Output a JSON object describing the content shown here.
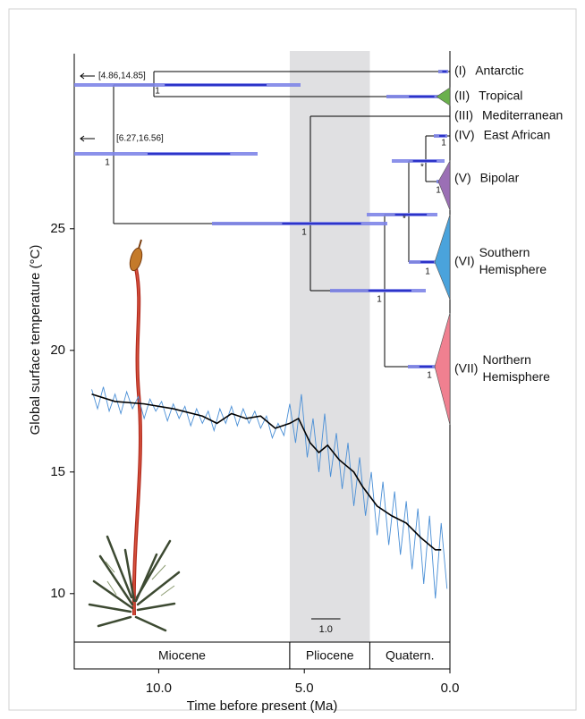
{
  "chart_data": {
    "type": "line",
    "x_label": "Time before present (Ma)",
    "y_label": "Global surface temperature (°C)",
    "xlim": [
      12.9,
      0
    ],
    "ylim": [
      9,
      34
    ],
    "xticks": [
      {
        "value": 10,
        "label": "10.0"
      },
      {
        "value": 5,
        "label": "5.0"
      },
      {
        "value": 0,
        "label": "0.0"
      }
    ],
    "yticks": [
      10,
      15,
      20,
      25
    ],
    "series": [
      {
        "color": "#4a8fd6",
        "x": [
          12.3,
          12.1,
          11.9,
          11.7,
          11.5,
          11.3,
          11.1,
          10.9,
          10.7,
          10.5,
          10.3,
          10.1,
          9.9,
          9.7,
          9.5,
          9.3,
          9.1,
          8.9,
          8.7,
          8.5,
          8.3,
          8.1,
          7.9,
          7.7,
          7.5,
          7.3,
          7.1,
          6.9,
          6.7,
          6.5,
          6.3,
          6.1,
          5.9,
          5.7,
          5.5,
          5.3,
          5.1,
          4.9,
          4.7,
          4.5,
          4.3,
          4.1,
          3.9,
          3.7,
          3.5,
          3.3,
          3.1,
          2.9,
          2.7,
          2.5,
          2.3,
          2.1,
          1.9,
          1.7,
          1.5,
          1.3,
          1.1,
          0.9,
          0.7,
          0.5,
          0.3,
          0.1
        ],
        "values": [
          18.4,
          17.6,
          18.5,
          17.5,
          18.2,
          17.4,
          18.3,
          17.6,
          18.1,
          17.2,
          18.0,
          17.5,
          17.9,
          17.1,
          17.8,
          17.2,
          17.7,
          16.9,
          17.6,
          17.0,
          17.5,
          16.7,
          17.6,
          17.0,
          17.7,
          16.9,
          17.6,
          17.0,
          17.5,
          16.8,
          17.3,
          16.4,
          17.0,
          16.5,
          17.8,
          16.2,
          18.2,
          15.6,
          17.2,
          15.0,
          17.4,
          14.8,
          16.6,
          14.3,
          16.2,
          13.6,
          15.6,
          13.2,
          15.0,
          12.4,
          14.6,
          12.0,
          14.2,
          11.6,
          13.8,
          11.0,
          13.5,
          10.4,
          13.2,
          9.8,
          12.9,
          10.2
        ]
      },
      {
        "color": "#000000",
        "x": [
          12.3,
          11.5,
          10.5,
          9.5,
          8.5,
          8.0,
          7.5,
          7.0,
          6.5,
          6.0,
          5.5,
          5.2,
          4.8,
          4.5,
          4.2,
          3.8,
          3.3,
          3.0,
          2.5,
          2.0,
          1.5,
          1.0,
          0.5,
          0.3
        ],
        "values": [
          18.2,
          17.9,
          17.8,
          17.6,
          17.3,
          17.0,
          17.4,
          17.2,
          17.3,
          16.8,
          17.0,
          17.2,
          16.2,
          15.8,
          16.1,
          15.5,
          15.0,
          14.4,
          13.6,
          13.2,
          12.9,
          12.3,
          11.8,
          11.8
        ]
      }
    ],
    "shaded_range": [
      5.5,
      2.75
    ],
    "shade_color": "#e0e0e2",
    "epochs": [
      {
        "name": "Miocene",
        "range": [
          12.9,
          5.5
        ]
      },
      {
        "name": "Pliocene",
        "range": [
          5.5,
          2.75
        ]
      },
      {
        "name": "Quatern.",
        "range": [
          2.75,
          0
        ]
      }
    ],
    "scale_bar": {
      "value": 1,
      "label": "1.0"
    }
  },
  "tree": {
    "intervals": [
      "[4.86,14.85]",
      "[6.27,16.56]"
    ],
    "supports": [
      "1",
      "1",
      "1",
      "1",
      "*",
      "1",
      "*",
      "1",
      "1",
      "1"
    ],
    "clades": [
      {
        "numeral": "(I)",
        "name": [
          "Antarctic"
        ],
        "color": null
      },
      {
        "numeral": "(II)",
        "name": [
          "Tropical"
        ],
        "color": "#6ab04c"
      },
      {
        "numeral": "(III)",
        "name": [
          "Mediterranean"
        ],
        "color": null
      },
      {
        "numeral": "(IV)",
        "name": [
          "East African"
        ],
        "color": null
      },
      {
        "numeral": "(V)",
        "name": [
          "Bipolar"
        ],
        "color": "#9b6fb5"
      },
      {
        "numeral": "(VI)",
        "name": [
          "Southern",
          "Hemisphere"
        ],
        "color": "#4aa3dc"
      },
      {
        "numeral": "(VII)",
        "name": [
          "Northern",
          "Hemisphere"
        ],
        "color": "#f08090"
      }
    ]
  }
}
